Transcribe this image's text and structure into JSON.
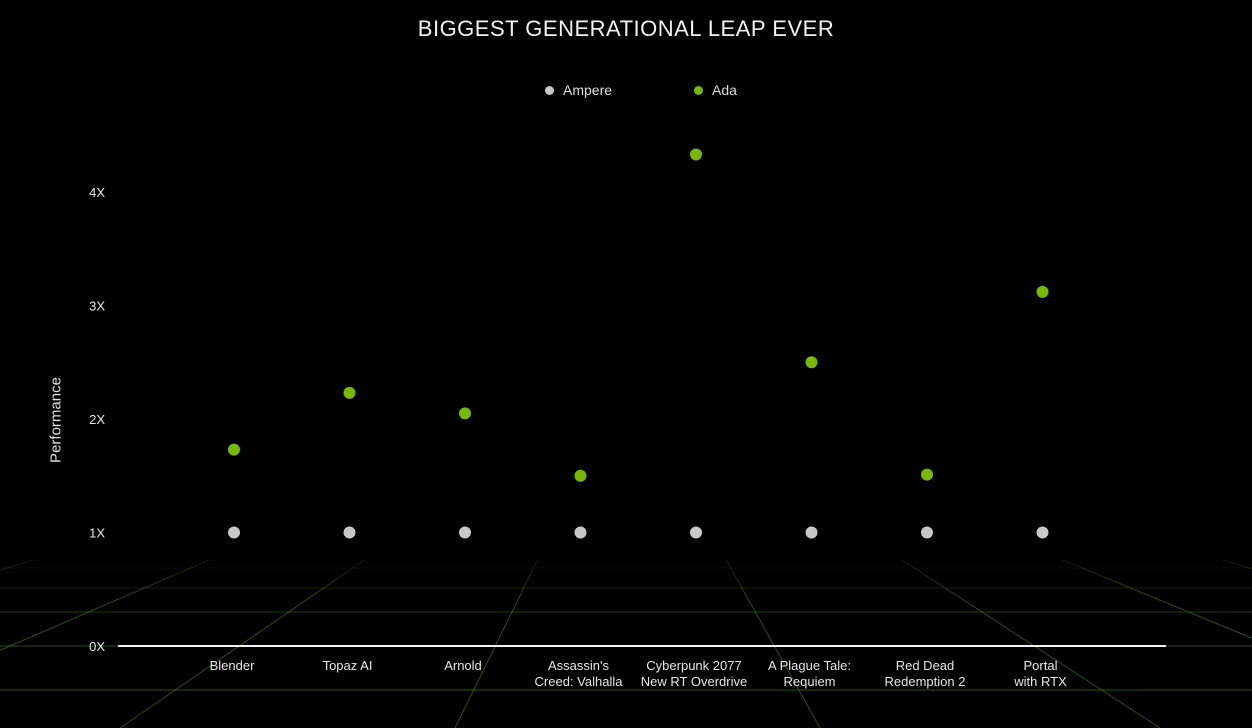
{
  "chart_data": {
    "type": "scatter",
    "title": "BIGGEST GENERATIONAL LEAP EVER",
    "ylabel": "Performance",
    "xlabel": "",
    "ylim": [
      0,
      4.5
    ],
    "yticks": [
      "0X",
      "1X",
      "2X",
      "3X",
      "4X"
    ],
    "ytick_values": [
      0,
      1,
      2,
      3,
      4
    ],
    "legend_position": "top-center",
    "grid": false,
    "categories": [
      [
        "Blender"
      ],
      [
        "Topaz AI"
      ],
      [
        "Arnold"
      ],
      [
        "Assassin's",
        "Creed: Valhalla"
      ],
      [
        "Cyberpunk 2077",
        "New RT Overdrive"
      ],
      [
        "A Plague Tale:",
        "Requiem"
      ],
      [
        "Red Dead",
        "Redemption 2"
      ],
      [
        "Portal",
        "with RTX"
      ]
    ],
    "series": [
      {
        "name": "Ampere",
        "color": "#c8c8c8",
        "values": [
          1,
          1,
          1,
          1,
          1,
          1,
          1,
          1
        ]
      },
      {
        "name": "Ada",
        "color": "#76b900",
        "values": [
          1.73,
          2.23,
          2.05,
          1.5,
          4.33,
          2.5,
          1.51,
          3.12
        ]
      }
    ]
  }
}
